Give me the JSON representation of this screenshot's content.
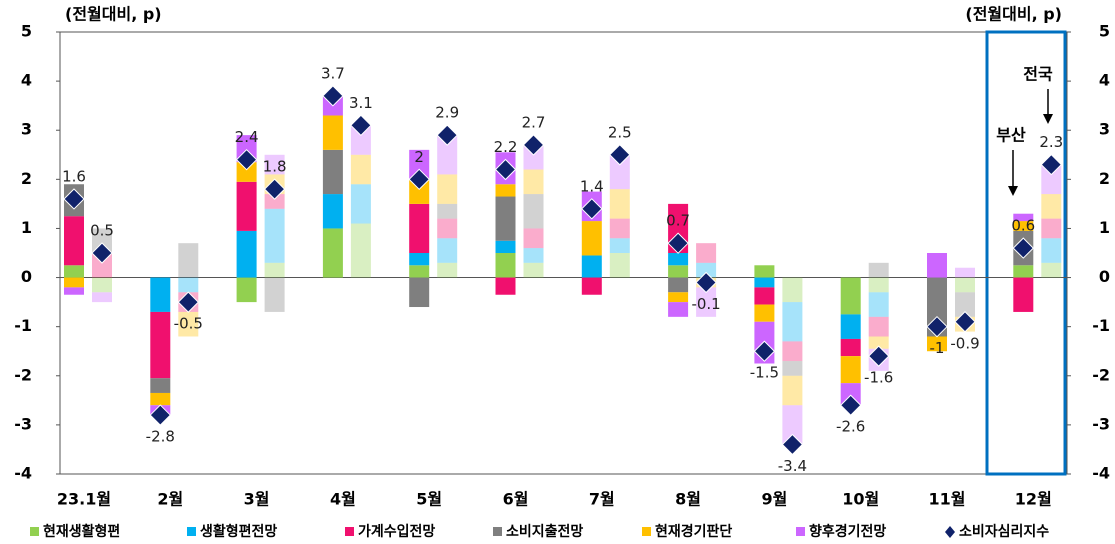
{
  "chart_data": {
    "type": "bar",
    "stacked": true,
    "axis_label": "(전월대비, p)",
    "axis_label_right": "(전월대비, p)",
    "categories": [
      "23.1월",
      "2월",
      "3월",
      "4월",
      "5월",
      "6월",
      "7월",
      "8월",
      "9월",
      "10월",
      "11월",
      "12월"
    ],
    "series": [
      {
        "name": "현재생활형편",
        "color": "#92d050",
        "values": [
          0.25,
          0,
          -0.5,
          1.0,
          0.25,
          0.5,
          0,
          0.25,
          0.25,
          -0.75,
          0,
          0.25
        ],
        "values_national": [
          -0.3,
          0,
          0.3,
          1.1,
          0.3,
          0.3,
          0.5,
          0,
          -0.5,
          -0.3,
          -0.3,
          0.3
        ]
      },
      {
        "name": "생활형편전망",
        "color": "#00b0f0",
        "values": [
          0,
          -0.7,
          0.95,
          0.7,
          0.25,
          0.25,
          0.45,
          0.25,
          -0.2,
          -0.5,
          0,
          0
        ],
        "values_national": [
          0,
          -0.3,
          1.1,
          0.8,
          0.5,
          0.3,
          0.3,
          0.3,
          -0.8,
          -0.5,
          0,
          0.5
        ]
      },
      {
        "name": "가계수입전망",
        "color": "#f0106e",
        "values": [
          1.0,
          -1.35,
          1.0,
          0,
          1.0,
          -0.35,
          -0.35,
          1.0,
          -0.35,
          -0.35,
          0,
          -0.7
        ],
        "values_national": [
          0.5,
          -0.4,
          0.3,
          0,
          0.4,
          0.4,
          0.4,
          0.4,
          -0.4,
          -0.4,
          0,
          0.4
        ]
      },
      {
        "name": "소비지출전망",
        "color": "#7f7f7f",
        "values": [
          0.65,
          -0.3,
          0,
          0.9,
          -0.6,
          0.9,
          0,
          -0.3,
          0,
          0,
          -1.2,
          0.7
        ],
        "values_national": [
          0.5,
          0.7,
          -0.7,
          0,
          0.3,
          0.7,
          0,
          0,
          -0.3,
          0.3,
          -0.5,
          0
        ]
      },
      {
        "name": "현재경기판단",
        "color": "#ffc000",
        "values": [
          -0.2,
          -0.25,
          0.4,
          0.7,
          0.5,
          0.25,
          0.7,
          -0.2,
          -0.35,
          -0.55,
          -0.3,
          0.2
        ],
        "values_national": [
          0,
          -0.5,
          0.4,
          0.6,
          0.6,
          0.5,
          0.6,
          -0.2,
          -0.6,
          -0.25,
          -0.3,
          0.5
        ]
      },
      {
        "name": "향후경기전망",
        "color": "#cc66ff",
        "values": [
          -0.15,
          -0.2,
          0.55,
          0.4,
          0.6,
          0.65,
          0.6,
          -0.3,
          -0.85,
          -0.45,
          0.5,
          0.15
        ],
        "values_national": [
          -0.2,
          0,
          0.4,
          0.6,
          0.8,
          0.5,
          0.7,
          -0.6,
          -0.8,
          -0.45,
          0.2,
          0.6
        ]
      }
    ],
    "index": {
      "name": "소비자심리지수",
      "color": "#10226a",
      "values": [
        1.6,
        -2.8,
        2.4,
        3.7,
        2.0,
        2.2,
        1.4,
        0.7,
        -1.5,
        -2.6,
        -1.0,
        0.6
      ],
      "values_national": [
        0.5,
        -0.5,
        1.8,
        3.1,
        2.9,
        2.7,
        2.5,
        -0.1,
        -3.4,
        -1.6,
        -0.9,
        2.3
      ]
    },
    "annotations": [
      "부산",
      "전국"
    ],
    "ylim": [
      -4,
      5
    ],
    "yticks": [
      -4,
      -3,
      -2,
      -1,
      0,
      1,
      2,
      3,
      4,
      5
    ],
    "y2lim": [
      -4,
      5
    ],
    "y2ticks": [
      -4,
      -3,
      -2,
      -1,
      0,
      1,
      2,
      3,
      4,
      5
    ]
  }
}
